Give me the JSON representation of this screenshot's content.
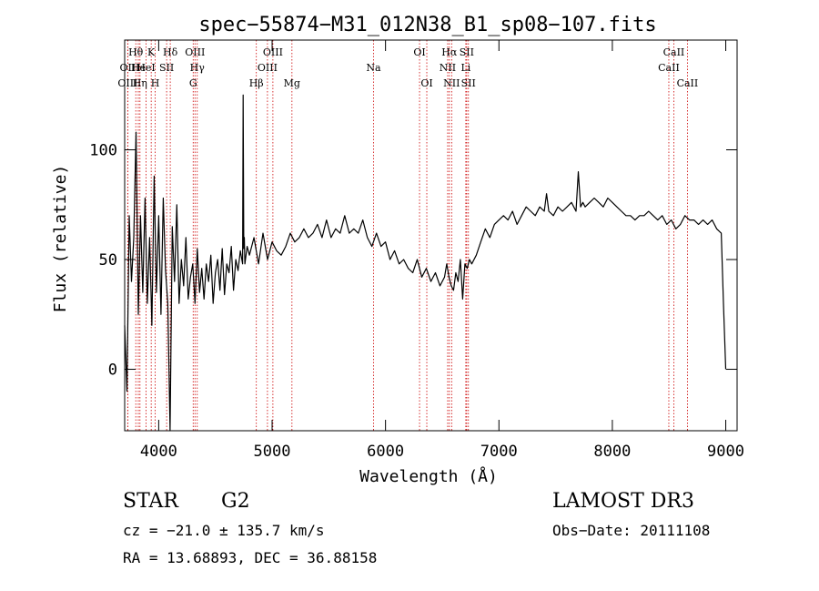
{
  "chart_data": {
    "type": "line",
    "title": "spec−55874−M31_012N38_B1_sp08−107.fits",
    "xlabel": "Wavelength (Å)",
    "ylabel": "Flux (relative)",
    "xlim": [
      3700,
      9100
    ],
    "ylim": [
      -28,
      150
    ],
    "xticks": [
      4000,
      5000,
      6000,
      7000,
      8000,
      9000
    ],
    "yticks": [
      0,
      50,
      100
    ],
    "grid": false,
    "line_color": "#000000",
    "marker_color": "#cc0000",
    "series": [
      {
        "name": "flux",
        "x": [
          3700,
          3720,
          3740,
          3760,
          3780,
          3800,
          3820,
          3840,
          3860,
          3880,
          3900,
          3920,
          3940,
          3960,
          3980,
          4000,
          4020,
          4040,
          4060,
          4080,
          4100,
          4120,
          4140,
          4160,
          4180,
          4200,
          4220,
          4240,
          4260,
          4280,
          4300,
          4320,
          4340,
          4360,
          4380,
          4400,
          4420,
          4440,
          4460,
          4480,
          4500,
          4520,
          4540,
          4560,
          4580,
          4600,
          4620,
          4640,
          4660,
          4680,
          4700,
          4720,
          4740,
          4745,
          4750,
          4755,
          4760,
          4780,
          4800,
          4840,
          4880,
          4920,
          4960,
          5000,
          5040,
          5080,
          5120,
          5160,
          5200,
          5240,
          5280,
          5320,
          5360,
          5400,
          5440,
          5480,
          5520,
          5560,
          5600,
          5640,
          5680,
          5720,
          5760,
          5800,
          5840,
          5880,
          5920,
          5960,
          6000,
          6040,
          6080,
          6120,
          6160,
          6200,
          6240,
          6280,
          6320,
          6360,
          6400,
          6440,
          6480,
          6520,
          6540,
          6560,
          6580,
          6600,
          6620,
          6640,
          6660,
          6680,
          6700,
          6720,
          6740,
          6760,
          6800,
          6840,
          6880,
          6920,
          6960,
          7000,
          7040,
          7080,
          7120,
          7160,
          7200,
          7240,
          7280,
          7320,
          7360,
          7400,
          7420,
          7440,
          7480,
          7520,
          7560,
          7600,
          7640,
          7680,
          7700,
          7720,
          7740,
          7760,
          7800,
          7840,
          7880,
          7920,
          7960,
          8000,
          8040,
          8080,
          8120,
          8160,
          8200,
          8240,
          8280,
          8320,
          8360,
          8400,
          8440,
          8480,
          8520,
          8560,
          8600,
          8640,
          8680,
          8720,
          8760,
          8800,
          8840,
          8880,
          8920,
          8960,
          8980,
          9000
        ],
        "y": [
          20,
          -10,
          70,
          40,
          60,
          108,
          25,
          70,
          35,
          78,
          30,
          60,
          20,
          88,
          35,
          70,
          25,
          78,
          45,
          30,
          -28,
          65,
          40,
          75,
          30,
          50,
          38,
          60,
          32,
          42,
          48,
          30,
          55,
          35,
          46,
          32,
          48,
          40,
          52,
          30,
          44,
          50,
          36,
          55,
          34,
          48,
          44,
          56,
          36,
          50,
          45,
          54,
          48,
          125,
          55,
          60,
          48,
          56,
          52,
          60,
          48,
          62,
          50,
          58,
          54,
          52,
          56,
          62,
          58,
          60,
          64,
          60,
          62,
          66,
          60,
          68,
          60,
          64,
          62,
          70,
          62,
          64,
          62,
          68,
          60,
          56,
          62,
          56,
          58,
          50,
          54,
          48,
          50,
          46,
          44,
          50,
          42,
          46,
          40,
          44,
          38,
          42,
          48,
          42,
          38,
          36,
          44,
          40,
          50,
          32,
          48,
          46,
          50,
          48,
          52,
          58,
          64,
          60,
          66,
          68,
          70,
          68,
          72,
          66,
          70,
          74,
          72,
          70,
          74,
          72,
          80,
          72,
          70,
          74,
          72,
          74,
          76,
          72,
          90,
          74,
          76,
          74,
          76,
          78,
          76,
          74,
          78,
          76,
          74,
          72,
          70,
          70,
          68,
          70,
          70,
          72,
          70,
          68,
          70,
          66,
          68,
          64,
          66,
          70,
          68,
          68,
          66,
          68,
          66,
          68,
          64,
          62,
          30,
          0
        ]
      }
    ],
    "lines": [
      {
        "name": "OII",
        "x": 3727,
        "label": "OII",
        "row": 1
      },
      {
        "name": "OIII",
        "x": 3727,
        "label": "OIII",
        "row": 2
      },
      {
        "name": "Hθ",
        "x": 3798,
        "label": "Hθ",
        "row": 0
      },
      {
        "name": "He",
        "x": 3820,
        "label": "He",
        "row": 1
      },
      {
        "name": "Hη",
        "x": 3835,
        "label": "Hη",
        "row": 2
      },
      {
        "name": "K",
        "x": 3934,
        "label": "K",
        "row": 0
      },
      {
        "name": "HeI",
        "x": 3889,
        "label": "HeI",
        "row": 1
      },
      {
        "name": "H",
        "x": 3969,
        "label": "H",
        "row": 2
      },
      {
        "name": "SII",
        "x": 4070,
        "label": "SII",
        "row": 1
      },
      {
        "name": "Hδ",
        "x": 4102,
        "label": "Hδ",
        "row": 0
      },
      {
        "name": "OIII",
        "x": 4320,
        "label": "OIII",
        "row": 0
      },
      {
        "name": "Hγ",
        "x": 4340,
        "label": "Hγ",
        "row": 1
      },
      {
        "name": "G",
        "x": 4304,
        "label": "G",
        "row": 2
      },
      {
        "name": "Hβ",
        "x": 4861,
        "label": "Hβ",
        "row": 2
      },
      {
        "name": "OIII",
        "x": 4959,
        "label": "OIII",
        "row": 1
      },
      {
        "name": "OIII",
        "x": 5007,
        "label": "OIII",
        "row": 0
      },
      {
        "name": "Mg",
        "x": 5175,
        "label": "Mg",
        "row": 2
      },
      {
        "name": "Na",
        "x": 5894,
        "label": "Na",
        "row": 1
      },
      {
        "name": "OI",
        "x": 6300,
        "label": "OI",
        "row": 0
      },
      {
        "name": "OI",
        "x": 6364,
        "label": "OI",
        "row": 2
      },
      {
        "name": "Hα",
        "x": 6563,
        "label": "Hα",
        "row": 0
      },
      {
        "name": "NII",
        "x": 6548,
        "label": "NII",
        "row": 1
      },
      {
        "name": "NII",
        "x": 6583,
        "label": "NII",
        "row": 2
      },
      {
        "name": "SII",
        "x": 6716,
        "label": "SII",
        "row": 0
      },
      {
        "name": "Li",
        "x": 6708,
        "label": "Li",
        "row": 1
      },
      {
        "name": "SII",
        "x": 6731,
        "label": "SII",
        "row": 2
      },
      {
        "name": "CaII",
        "x": 8498,
        "label": "CaII",
        "row": 1
      },
      {
        "name": "CaII",
        "x": 8542,
        "label": "CaII",
        "row": 0
      },
      {
        "name": "CaII",
        "x": 8662,
        "label": "CaII",
        "row": 2
      }
    ]
  },
  "info": {
    "class": "STAR",
    "subclass": "G2",
    "survey": "LAMOST DR3",
    "cz": "cz = −21.0 ± 135.7 km/s",
    "obs_date": "Obs−Date: 20111108",
    "radec": "RA =  13.68893, DEC =  36.88158"
  }
}
